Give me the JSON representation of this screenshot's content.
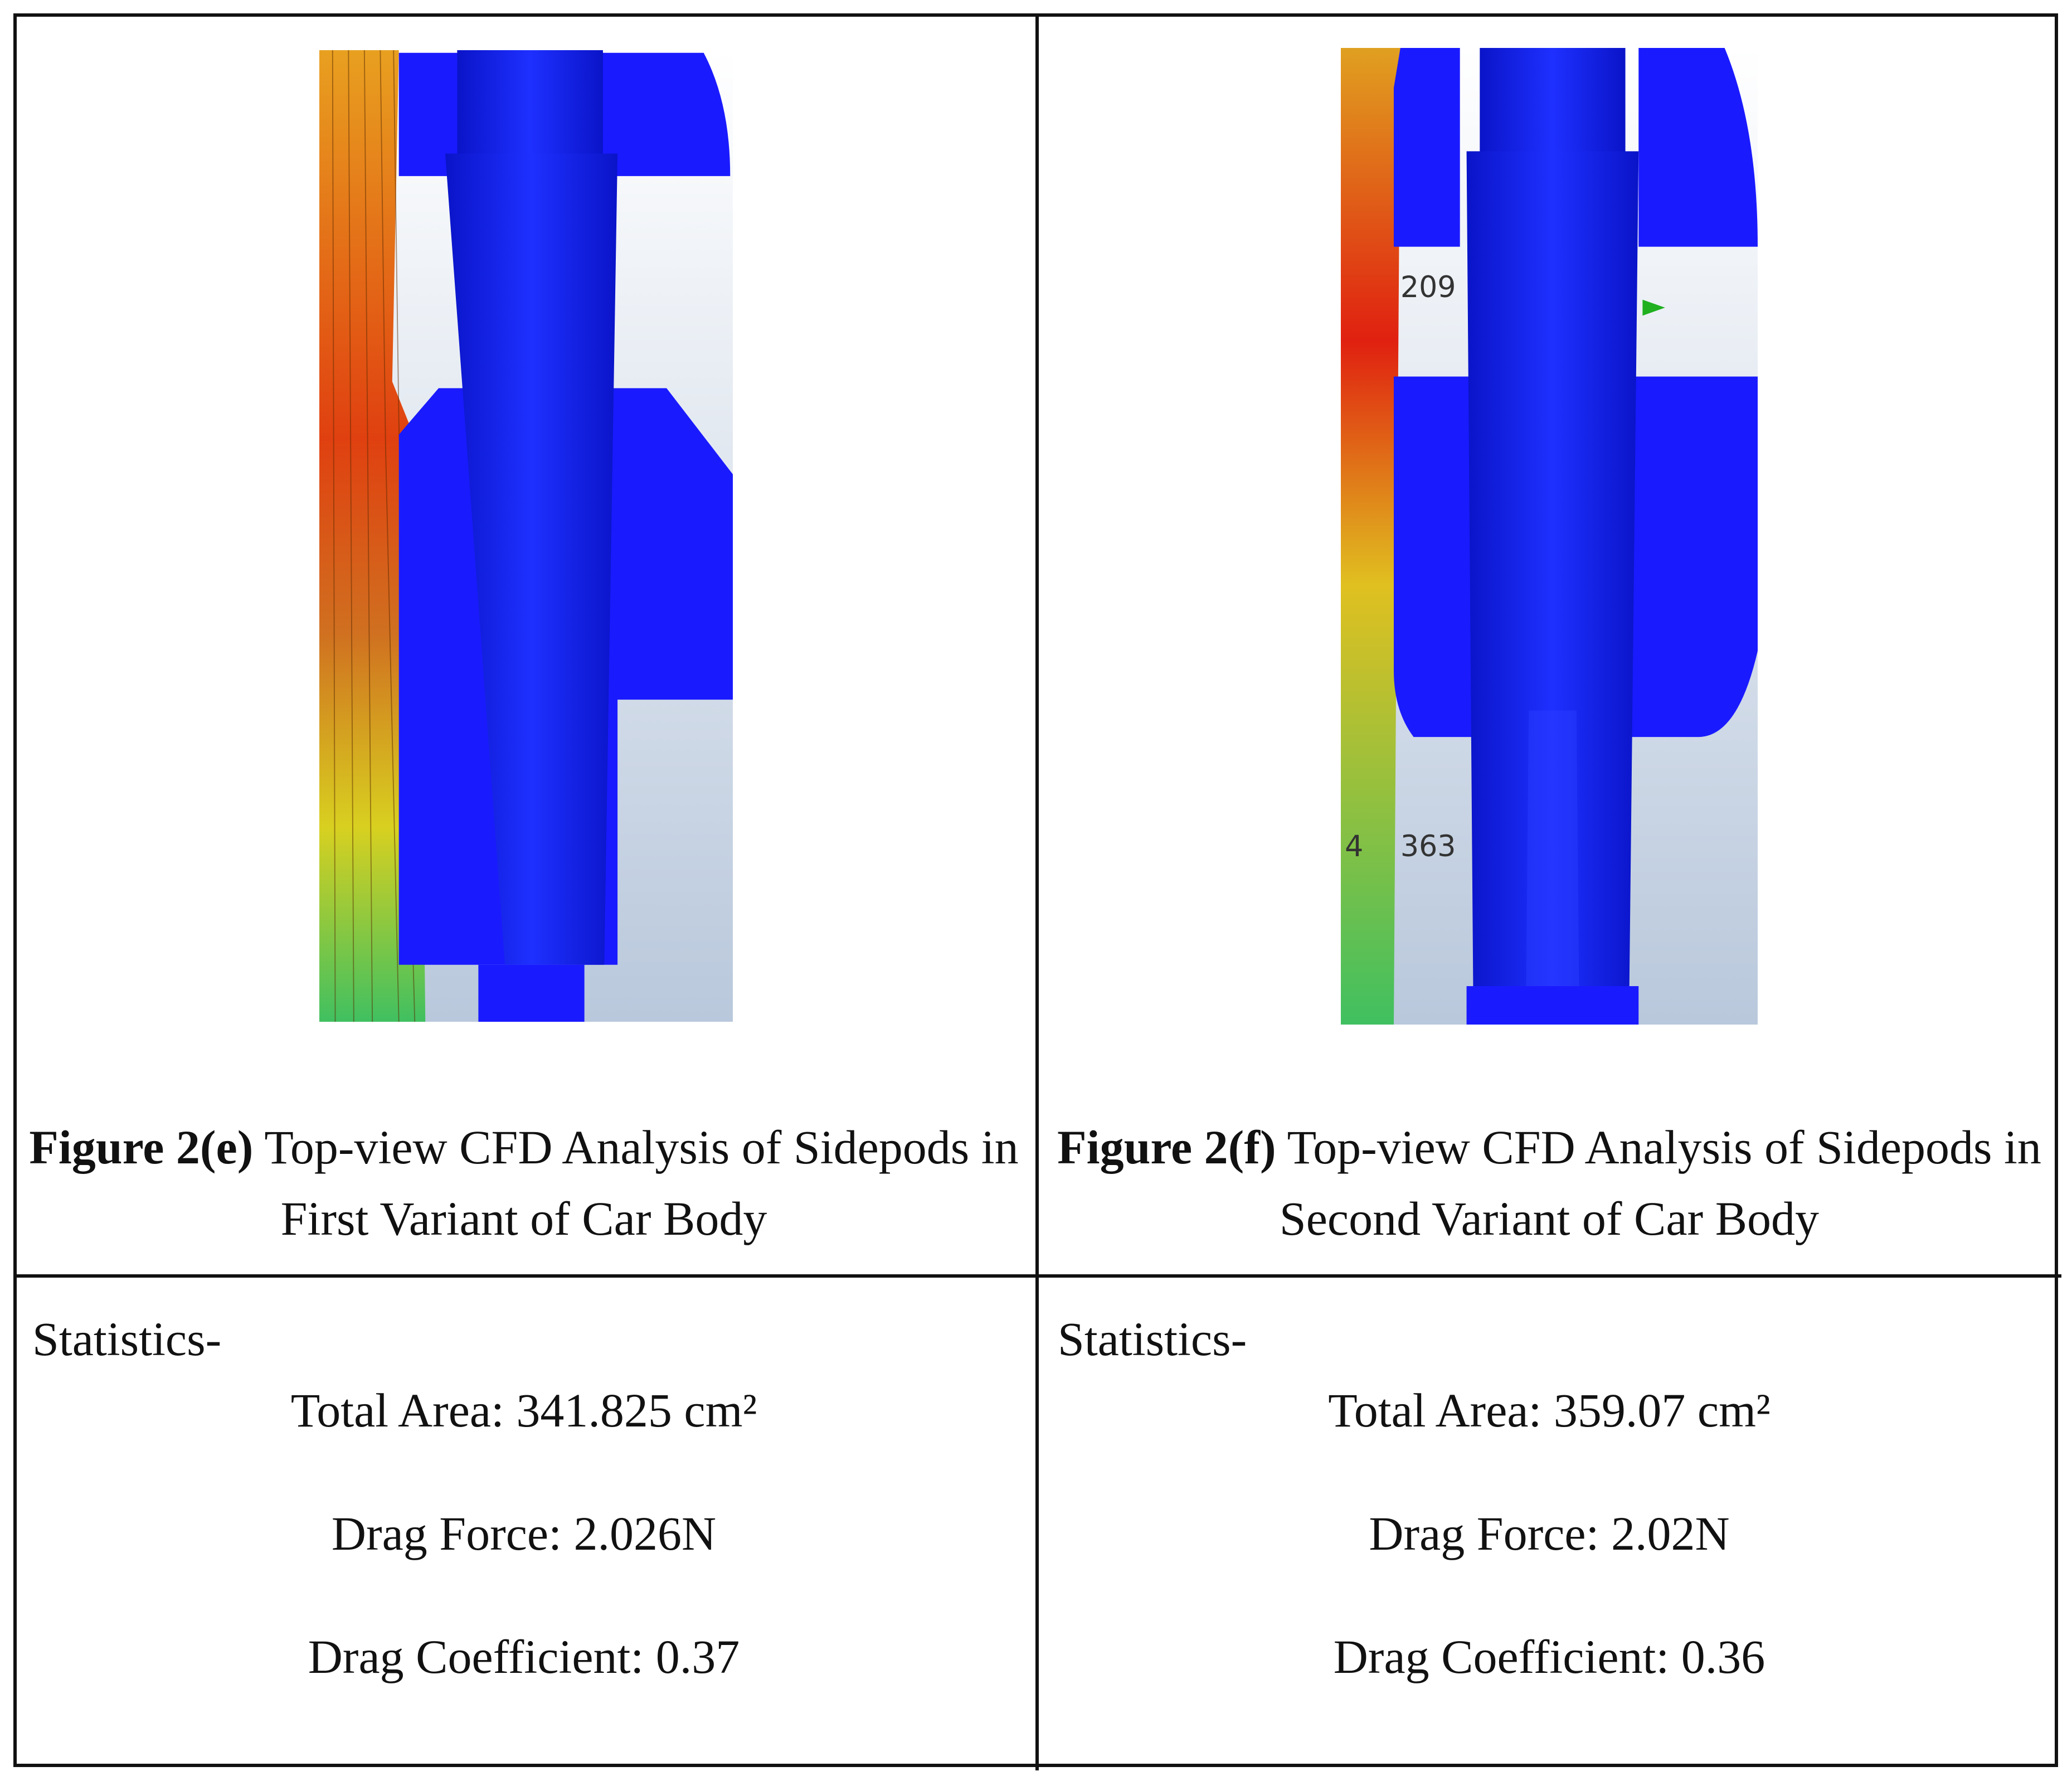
{
  "cells": [
    {
      "figure_label": "Figure 2(e)",
      "caption": "Top-view CFD Analysis of Sidepods in First Variant of Car Body",
      "statistics_heading": "Statistics-",
      "total_area": "Total Area: 341.825 cm²",
      "drag_force": "Drag Force: 2.026N",
      "drag_coefficient": "Drag Coefficient: 0.37"
    },
    {
      "figure_label": "Figure 2(f)",
      "caption": "Top-view CFD Analysis of Sidepods in Second Variant of Car Body",
      "statistics_heading": "Statistics-",
      "total_area": "Total Area: 359.07 cm²",
      "drag_force": "Drag Force: 2.02N",
      "drag_coefficient": "Drag Coefficient: 0.36",
      "image_labels": [
        "209",
        "363",
        "4"
      ]
    }
  ]
}
